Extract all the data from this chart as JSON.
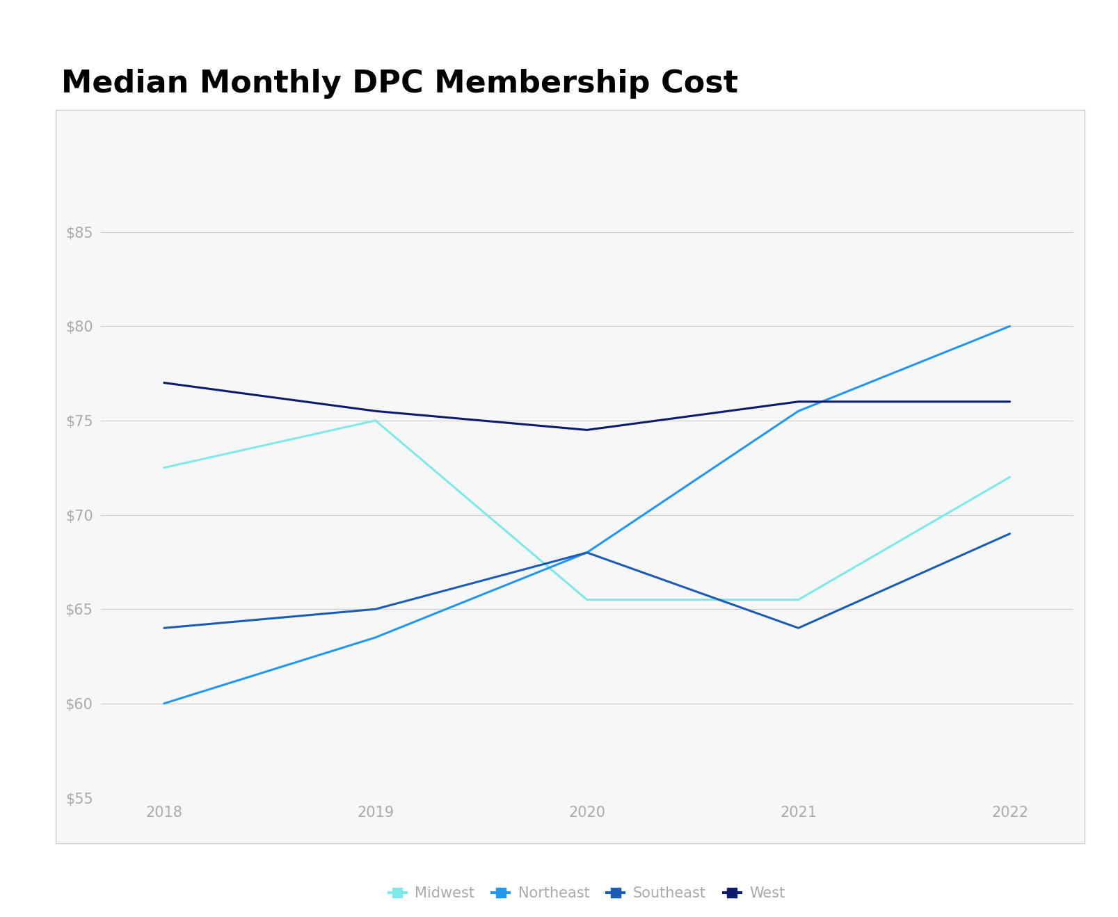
{
  "title": "Median Monthly DPC Membership Cost",
  "years": [
    2018,
    2019,
    2020,
    2021,
    2022
  ],
  "series": {
    "Midwest": {
      "values": [
        72.5,
        75,
        65.5,
        65.5,
        72
      ],
      "color": "#7FE8E8",
      "linewidth": 2.2
    },
    "Northeast": {
      "values": [
        60,
        63.5,
        68,
        75.5,
        80
      ],
      "color": "#2196F3",
      "linewidth": 2.2
    },
    "Southeast": {
      "values": [
        64,
        65,
        68,
        64,
        69
      ],
      "color": "#1A5BB5",
      "linewidth": 2.2
    },
    "West": {
      "values": [
        77,
        75.5,
        74.5,
        76,
        76
      ],
      "color": "#0D1B6E",
      "linewidth": 2.2
    }
  },
  "xlim": [
    2017.7,
    2022.3
  ],
  "ylim": [
    55,
    90
  ],
  "yticks": [
    55,
    60,
    65,
    70,
    75,
    80,
    85
  ],
  "xticks": [
    2018,
    2019,
    2020,
    2021,
    2022
  ],
  "background_color": "#ffffff",
  "plot_bg_color": "#ffffff",
  "box_bg_color": "#f7f7f7",
  "grid_color": "#cccccc",
  "border_color": "#cccccc",
  "title_fontsize": 32,
  "tick_fontsize": 15,
  "legend_fontsize": 15,
  "tick_color": "#aaaaaa",
  "legend_order": [
    "Midwest",
    "Northeast",
    "Southeast",
    "West"
  ]
}
